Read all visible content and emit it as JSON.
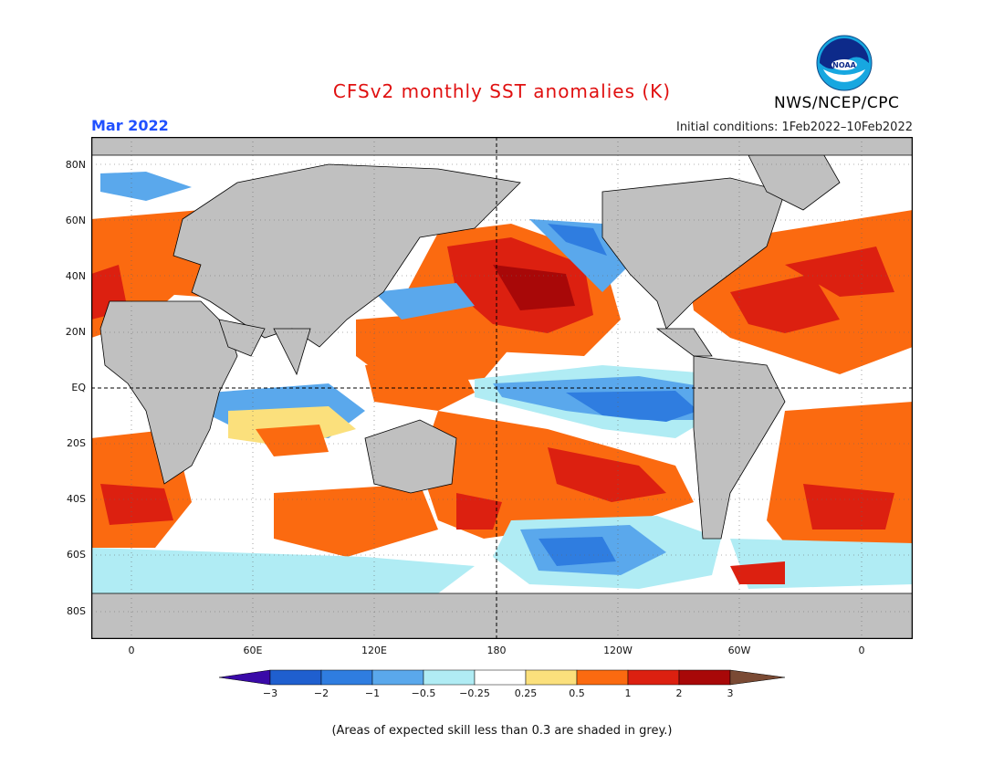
{
  "title": "CFSv2 monthly SST anomalies (K)",
  "month_label": "Mar 2022",
  "initial_conditions": "Initial conditions: 1Feb2022–10Feb2022",
  "org_label": "NWS/NCEP/CPC",
  "logo_text": "NOAA",
  "lat_labels": [
    "80N",
    "60N",
    "40N",
    "20N",
    "EQ",
    "20S",
    "40S",
    "60S",
    "80S"
  ],
  "lon_labels": [
    "0",
    "60E",
    "120E",
    "180",
    "120W",
    "60W",
    "0"
  ],
  "colorbar": {
    "labels": [
      "−3",
      "−2",
      "−1",
      "−0.5",
      "−0.25",
      "0.25",
      "0.5",
      "1",
      "2",
      "3"
    ],
    "colors": {
      "below": "#3a0aa8",
      "n3": "#1f5fcf",
      "n2": "#2f7de0",
      "n1": "#5aa8ec",
      "n05": "#b0ecf4",
      "zero": "#ffffff",
      "p025": "#fbe07c",
      "p05": "#fb6a10",
      "p1": "#dc2010",
      "p2": "#a80808",
      "above": "#7a4a34"
    }
  },
  "map_colors": {
    "land": "#c0c0c0",
    "ocean_neutral": "#ffffff"
  },
  "note": "(Areas of expected skill less than 0.3 are shaded in grey.)"
}
